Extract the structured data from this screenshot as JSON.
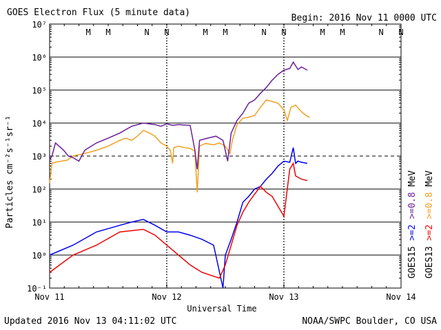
{
  "header": {
    "title": "GOES Electron Flux (5 minute data)",
    "begin": "Begin: 2016 Nov 11 0000 UTC"
  },
  "footer": {
    "updated": "Updated 2016 Nov 13 04:11:02 UTC",
    "credit": "NOAA/SWPC Boulder, CO USA"
  },
  "chart_data": {
    "type": "line",
    "title": "GOES Electron Flux (5 minute data)",
    "xlabel": "Universal Time",
    "ylabel": "Particles cm⁻²s⁻¹sr⁻¹",
    "yscale": "log",
    "ylim": [
      0.1,
      10000000
    ],
    "xlim": [
      0,
      3
    ],
    "x_unit": "days since 2016 Nov 11 0000 UTC",
    "x_ticks": [
      "Nov 11",
      "Nov 12",
      "Nov 13",
      "Nov 14"
    ],
    "y_ticks": [
      "10⁻¹",
      "10⁰",
      "10¹",
      "10²",
      "10³",
      "10⁴",
      "10⁵",
      "10⁶",
      "10⁷"
    ],
    "threshold_line": 1000,
    "grid": true,
    "noise_start_day": 0.0,
    "top_markers": [
      {
        "label": "M",
        "x": 0.33,
        "color": "#cc0000"
      },
      {
        "label": "M",
        "x": 0.5,
        "color": "#0000cc"
      },
      {
        "label": "N",
        "x": 0.83,
        "color": "#cc0000"
      },
      {
        "label": "N",
        "x": 1.0,
        "color": "#0000cc"
      },
      {
        "label": "M",
        "x": 1.33,
        "color": "#cc0000"
      },
      {
        "label": "M",
        "x": 1.5,
        "color": "#0000cc"
      },
      {
        "label": "N",
        "x": 1.83,
        "color": "#cc0000"
      },
      {
        "label": "N",
        "x": 2.0,
        "color": "#0000cc"
      },
      {
        "label": "M",
        "x": 2.33,
        "color": "#cc0000"
      },
      {
        "label": "M",
        "x": 2.5,
        "color": "#0000cc"
      },
      {
        "label": "N",
        "x": 2.83,
        "color": "#cc0000"
      },
      {
        "label": "N",
        "x": 3.0,
        "color": "#0000cc"
      }
    ],
    "series": [
      {
        "name": "GOES13 >=0.8 MeV",
        "color": "#f0a020",
        "points": [
          [
            0.0,
            150
          ],
          [
            0.02,
            600
          ],
          [
            0.05,
            650
          ],
          [
            0.1,
            700
          ],
          [
            0.15,
            750
          ],
          [
            0.2,
            1000
          ],
          [
            0.3,
            1200
          ],
          [
            0.4,
            1500
          ],
          [
            0.5,
            2000
          ],
          [
            0.6,
            3000
          ],
          [
            0.65,
            3500
          ],
          [
            0.7,
            3000
          ],
          [
            0.75,
            4000
          ],
          [
            0.8,
            6000
          ],
          [
            0.85,
            5000
          ],
          [
            0.9,
            4000
          ],
          [
            0.95,
            2500
          ],
          [
            1.0,
            2000
          ],
          [
            1.03,
            1500
          ],
          [
            1.05,
            600
          ],
          [
            1.06,
            1800
          ],
          [
            1.1,
            2000
          ],
          [
            1.15,
            1800
          ],
          [
            1.2,
            1700
          ],
          [
            1.24,
            1400
          ],
          [
            1.26,
            80
          ],
          [
            1.28,
            2000
          ],
          [
            1.33,
            2400
          ],
          [
            1.4,
            2200
          ],
          [
            1.45,
            2500
          ],
          [
            1.5,
            2000
          ],
          [
            1.54,
            1200
          ],
          [
            1.56,
            3000
          ],
          [
            1.6,
            9000
          ],
          [
            1.65,
            14000
          ],
          [
            1.7,
            15000
          ],
          [
            1.75,
            17000
          ],
          [
            1.8,
            30000
          ],
          [
            1.85,
            50000
          ],
          [
            1.9,
            45000
          ],
          [
            1.95,
            40000
          ],
          [
            2.0,
            25000
          ],
          [
            2.03,
            12000
          ],
          [
            2.06,
            30000
          ],
          [
            2.1,
            35000
          ],
          [
            2.15,
            22000
          ],
          [
            2.2,
            16000
          ],
          [
            2.22,
            15000
          ]
        ]
      },
      {
        "name": "GOES15 >=0.8 MeV",
        "color": "#6a1f9a",
        "points": [
          [
            0.0,
            800
          ],
          [
            0.02,
            1000
          ],
          [
            0.05,
            2500
          ],
          [
            0.08,
            2000
          ],
          [
            0.12,
            1500
          ],
          [
            0.16,
            1000
          ],
          [
            0.2,
            900
          ],
          [
            0.25,
            700
          ],
          [
            0.3,
            1500
          ],
          [
            0.4,
            2500
          ],
          [
            0.5,
            3500
          ],
          [
            0.6,
            5000
          ],
          [
            0.7,
            8000
          ],
          [
            0.8,
            10000
          ],
          [
            0.9,
            9000
          ],
          [
            0.95,
            8000
          ],
          [
            1.0,
            9500
          ],
          [
            1.05,
            8500
          ],
          [
            1.1,
            9000
          ],
          [
            1.2,
            8500
          ],
          [
            1.24,
            1500
          ],
          [
            1.26,
            400
          ],
          [
            1.28,
            3000
          ],
          [
            1.35,
            3500
          ],
          [
            1.42,
            4000
          ],
          [
            1.48,
            3000
          ],
          [
            1.52,
            700
          ],
          [
            1.55,
            5000
          ],
          [
            1.6,
            12000
          ],
          [
            1.65,
            20000
          ],
          [
            1.7,
            40000
          ],
          [
            1.75,
            50000
          ],
          [
            1.8,
            80000
          ],
          [
            1.85,
            120000
          ],
          [
            1.9,
            200000
          ],
          [
            1.95,
            300000
          ],
          [
            2.0,
            400000
          ],
          [
            2.05,
            450000
          ],
          [
            2.08,
            700000
          ],
          [
            2.12,
            420000
          ],
          [
            2.15,
            500000
          ],
          [
            2.2,
            400000
          ]
        ]
      },
      {
        "name": "GOES15 >=2 MeV",
        "color": "#0000ee",
        "points": [
          [
            0.0,
            1
          ],
          [
            0.2,
            2
          ],
          [
            0.4,
            5
          ],
          [
            0.6,
            8
          ],
          [
            0.7,
            10
          ],
          [
            0.8,
            12
          ],
          [
            0.9,
            8
          ],
          [
            1.0,
            5
          ],
          [
            1.1,
            5
          ],
          [
            1.2,
            4
          ],
          [
            1.3,
            3
          ],
          [
            1.4,
            2
          ],
          [
            1.48,
            0.1
          ],
          [
            1.5,
            1
          ],
          [
            1.55,
            3
          ],
          [
            1.6,
            10
          ],
          [
            1.65,
            40
          ],
          [
            1.7,
            60
          ],
          [
            1.75,
            100
          ],
          [
            1.8,
            120
          ],
          [
            1.85,
            200
          ],
          [
            1.9,
            300
          ],
          [
            1.95,
            500
          ],
          [
            2.0,
            700
          ],
          [
            2.05,
            650
          ],
          [
            2.08,
            1800
          ],
          [
            2.1,
            600
          ],
          [
            2.12,
            700
          ],
          [
            2.15,
            650
          ],
          [
            2.2,
            600
          ]
        ]
      },
      {
        "name": "GOES13 >=2 MeV",
        "color": "#ee0000",
        "points": [
          [
            0.0,
            0.3
          ],
          [
            0.2,
            1
          ],
          [
            0.4,
            2
          ],
          [
            0.6,
            5
          ],
          [
            0.8,
            6
          ],
          [
            0.9,
            4
          ],
          [
            1.0,
            2
          ],
          [
            1.1,
            1
          ],
          [
            1.2,
            0.5
          ],
          [
            1.3,
            0.3
          ],
          [
            1.45,
            0.2
          ],
          [
            1.5,
            0.5
          ],
          [
            1.55,
            2
          ],
          [
            1.6,
            8
          ],
          [
            1.65,
            20
          ],
          [
            1.7,
            40
          ],
          [
            1.75,
            70
          ],
          [
            1.8,
            120
          ],
          [
            1.85,
            80
          ],
          [
            1.9,
            60
          ],
          [
            1.95,
            30
          ],
          [
            2.0,
            15
          ],
          [
            2.05,
            400
          ],
          [
            2.08,
            600
          ],
          [
            2.1,
            250
          ],
          [
            2.15,
            200
          ],
          [
            2.2,
            180
          ]
        ]
      }
    ],
    "right_labels": [
      {
        "lines": [
          "GOES15",
          ">=2",
          ">=0.8",
          "MeV"
        ],
        "colors": [
          "#000000",
          "#0000ee",
          "#6a1f9a",
          "#000000"
        ]
      },
      {
        "lines": [
          "GOES13",
          ">=2",
          ">=0.8",
          "MeV"
        ],
        "colors": [
          "#000000",
          "#ee0000",
          "#f0a020",
          "#000000"
        ]
      }
    ]
  }
}
